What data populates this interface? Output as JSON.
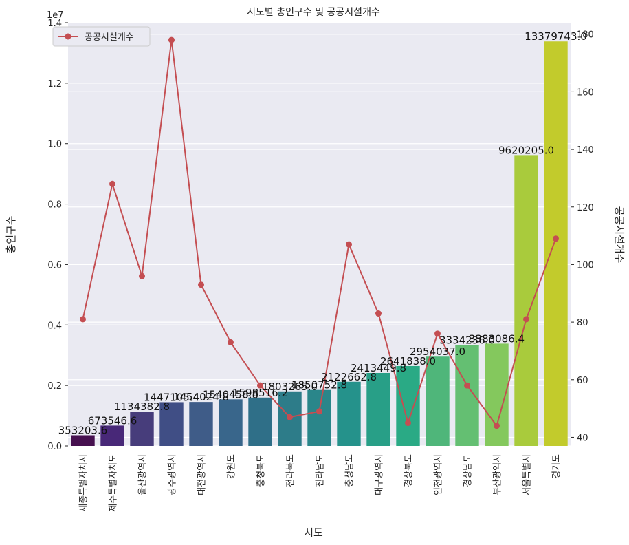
{
  "chart_data": {
    "type": "bar",
    "title": "시도별 총인구수 및 공공시설개수",
    "xlabel": "시도",
    "ylabel": "총인구수",
    "y2label": "공공시설개수",
    "offset_text": "1e7",
    "categories": [
      "세종특별자치시",
      "제주특별자치도",
      "울산광역시",
      "광주광역시",
      "대전광역시",
      "강원도",
      "충청북도",
      "전라북도",
      "전라남도",
      "충청남도",
      "대구광역시",
      "경상북도",
      "인천광역시",
      "경상남도",
      "부산광역시",
      "서울특별시",
      "경기도"
    ],
    "bar_series": {
      "name": "총인구수",
      "values": [
        353203.6,
        673546.6,
        1134382.8,
        1447105.4,
        1454024.8,
        1540458.8,
        1598516.2,
        1803265.0,
        1850752.8,
        2122662.8,
        2413449.8,
        2641838.0,
        2954037.0,
        3334236.0,
        3383086.4,
        9620205.0,
        13379743.0
      ],
      "labels": [
        "353203.6",
        "673546.6",
        "1134382.8",
        "1447105.4",
        "1454024.8",
        "1540458.8",
        "1598516.2",
        "1803265.0",
        "1850752.8",
        "2122662.8",
        "2413449.8",
        "2641838.0",
        "2954037.0",
        "3334236.0",
        "3383086.4",
        "9620205.0",
        "13379743.0"
      ],
      "colors": [
        "#46104f",
        "#482878",
        "#473d7b",
        "#404e85",
        "#3f5c88",
        "#39668b",
        "#2f6f88",
        "#2d7c89",
        "#2a868a",
        "#25928b",
        "#289f87",
        "#2aaa85",
        "#4fb67a",
        "#64bf72",
        "#84c85d",
        "#a9cb3c",
        "#c2cb2c"
      ]
    },
    "line_series": {
      "name": "공공시설개수",
      "color": "#c44e52",
      "values": [
        81,
        128,
        96,
        178,
        93,
        73,
        58,
        47,
        49,
        107,
        83,
        45,
        76,
        58,
        44,
        81,
        109
      ]
    },
    "y_ticks": [
      "0.0",
      "0.2",
      "0.4",
      "0.6",
      "0.8",
      "1.0",
      "1.2",
      "1.4"
    ],
    "y_tick_values": [
      0,
      2000000,
      4000000,
      6000000,
      8000000,
      10000000,
      12000000,
      14000000
    ],
    "ylim": [
      0,
      14000000
    ],
    "y2_ticks": [
      "40",
      "60",
      "80",
      "100",
      "120",
      "140",
      "160",
      "180"
    ],
    "y2_tick_values": [
      40,
      60,
      80,
      100,
      120,
      140,
      160,
      180
    ],
    "y2lim": [
      37,
      184
    ],
    "legend": {
      "position": "top-left",
      "entries": [
        "공공시설개수"
      ]
    },
    "grid": true
  }
}
